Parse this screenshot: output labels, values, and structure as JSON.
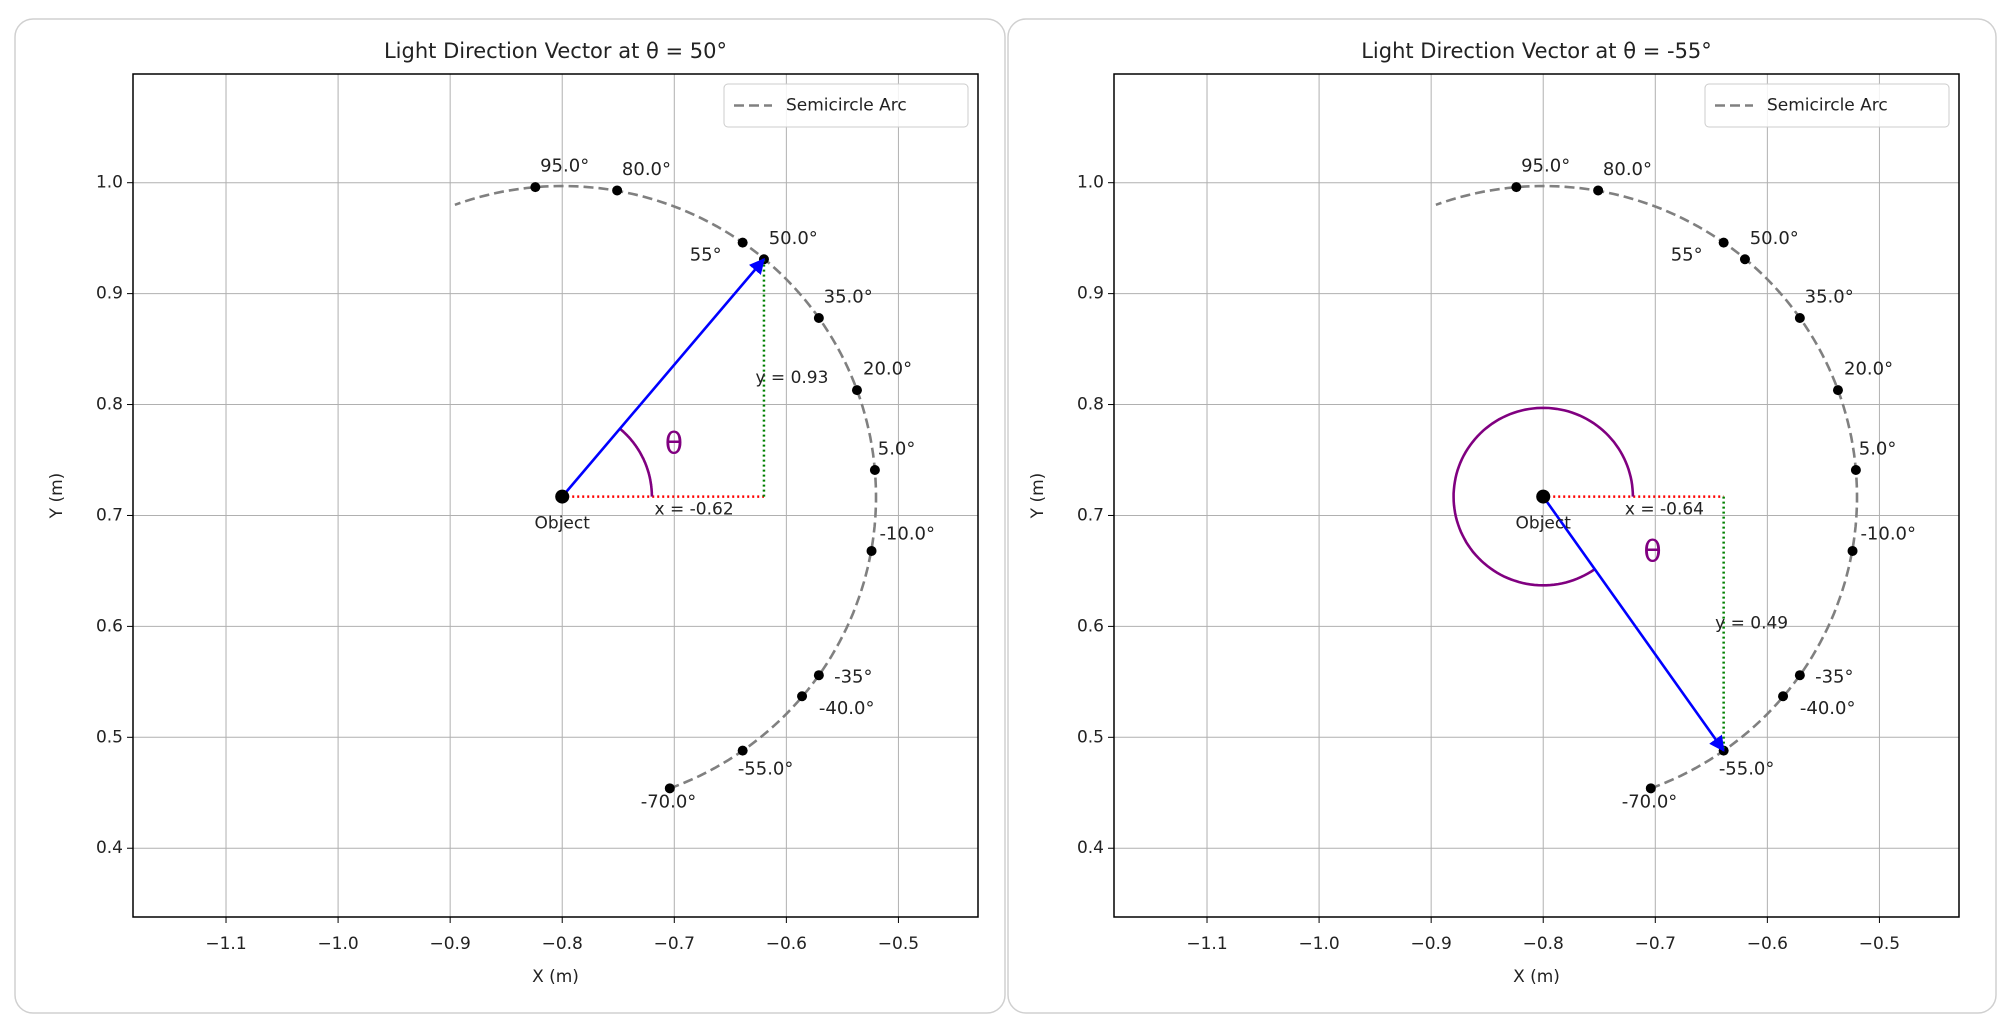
{
  "chart_data": [
    {
      "type": "vector",
      "title": "Light Direction Vector at θ = 50°",
      "x_label": "X (m)",
      "y_label": "Y (m)",
      "xlim": [
        -1.183,
        -0.429
      ],
      "ylim": [
        0.338,
        1.098
      ],
      "xticks": [
        {
          "value": -1.1,
          "label": "−1.1"
        },
        {
          "value": -1.0,
          "label": "−1.0"
        },
        {
          "value": -0.9,
          "label": "−0.9"
        },
        {
          "value": -0.8,
          "label": "−0.8"
        },
        {
          "value": -0.7,
          "label": "−0.7"
        },
        {
          "value": -0.6,
          "label": "−0.6"
        },
        {
          "value": -0.5,
          "label": "−0.5"
        }
      ],
      "yticks": [
        0.4,
        0.5,
        0.6,
        0.7,
        0.8,
        0.9,
        {
          "value": 1.0,
          "label": "1.0"
        }
      ],
      "grid": true,
      "legend": "upper right",
      "arc": {
        "name": "Semicircle Arc",
        "color": "#808080",
        "radius": 0.28,
        "angles": [
          -70,
          110
        ]
      },
      "points": {
        "x": [
          -0.824,
          -0.751,
          -0.639,
          -0.62,
          -0.571,
          -0.537,
          -0.521,
          -0.524,
          -0.571,
          -0.586,
          -0.639,
          -0.704
        ],
        "y": [
          0.996,
          0.993,
          0.946,
          0.931,
          0.878,
          0.813,
          0.741,
          0.668,
          0.556,
          0.537,
          0.488,
          0.454
        ],
        "labels": [
          "95.0°",
          "80.0°",
          "55°",
          "50.0°",
          "35.0°",
          "20.0°",
          "5.0°",
          "-10.0°",
          "-35°",
          "-40.0°",
          "-55.0°",
          "-70.0°"
        ],
        "color": "#000000"
      },
      "object_label": "Object",
      "vector": {
        "x": [
          -0.8,
          -0.62
        ],
        "y": [
          0.717,
          0.931
        ],
        "color": "#0000ff"
      },
      "angle_arc": {
        "label": "θ",
        "radius": 0.08,
        "angles": [
          0,
          50
        ],
        "color": "#800080"
      },
      "x_component": {
        "label": "x = -0.62",
        "color": "#ff0000"
      },
      "y_component": {
        "label": "y = 0.93",
        "color": "#008000"
      }
    },
    {
      "type": "vector",
      "title": "Light Direction Vector at θ = -55°",
      "x_label": "X (m)",
      "y_label": "Y (m)",
      "xlim": [
        -1.183,
        -0.429
      ],
      "ylim": [
        0.338,
        1.098
      ],
      "xticks": [
        {
          "value": -1.1,
          "label": "−1.1"
        },
        {
          "value": -1.0,
          "label": "−1.0"
        },
        {
          "value": -0.9,
          "label": "−0.9"
        },
        {
          "value": -0.8,
          "label": "−0.8"
        },
        {
          "value": -0.7,
          "label": "−0.7"
        },
        {
          "value": -0.6,
          "label": "−0.6"
        },
        {
          "value": -0.5,
          "label": "−0.5"
        }
      ],
      "yticks": [
        0.4,
        0.5,
        0.6,
        0.7,
        0.8,
        0.9,
        {
          "value": 1.0,
          "label": "1.0"
        }
      ],
      "grid": true,
      "legend": "upper right",
      "arc": {
        "name": "Semicircle Arc",
        "color": "#808080",
        "radius": 0.28,
        "angles": [
          -70,
          110
        ]
      },
      "points": {
        "x": [
          -0.824,
          -0.751,
          -0.639,
          -0.62,
          -0.571,
          -0.537,
          -0.521,
          -0.524,
          -0.571,
          -0.586,
          -0.639,
          -0.704
        ],
        "y": [
          0.996,
          0.993,
          0.946,
          0.931,
          0.878,
          0.813,
          0.741,
          0.668,
          0.556,
          0.537,
          0.488,
          0.454
        ],
        "labels": [
          "95.0°",
          "80.0°",
          "55°",
          "50.0°",
          "35.0°",
          "20.0°",
          "5.0°",
          "-10.0°",
          "-35°",
          "-40.0°",
          "-55.0°",
          "-70.0°"
        ],
        "color": "#000000"
      },
      "object_label": "Object",
      "vector": {
        "x": [
          -0.8,
          -0.639
        ],
        "y": [
          0.717,
          0.488
        ],
        "color": "#0000ff"
      },
      "angle_arc": {
        "label": "θ",
        "radius": 0.08,
        "angles": [
          0,
          305
        ],
        "color": "#800080"
      },
      "x_component": {
        "label": "x = -0.64",
        "color": "#ff0000"
      },
      "y_component": {
        "label": "y = 0.49",
        "color": "#008000"
      }
    }
  ]
}
